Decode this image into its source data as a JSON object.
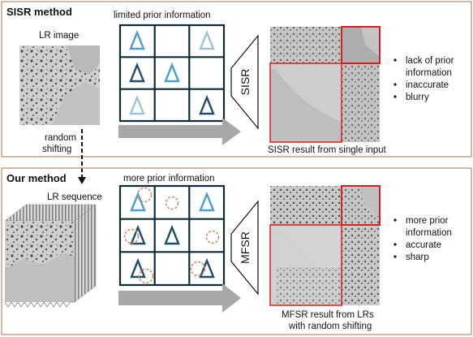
{
  "sisr": {
    "title": "SISR method",
    "lr_label": "LR image",
    "prior_label": "limited prior information",
    "block_label": "SISR",
    "result_label": "SISR result from single input",
    "bullets": [
      "lack of prior",
      "information",
      "inaccurate",
      "blurry"
    ]
  },
  "shift": {
    "line1": "random",
    "line2": "shifting"
  },
  "ours": {
    "title": "Our method",
    "seq_label": "LR sequence",
    "prior_label": "more prior information",
    "block_label": "MFSR",
    "result_line1": "MFSR result from LRs",
    "result_line2": "with random shifting",
    "bullets": [
      "more prior",
      "information",
      "accurate",
      "sharp"
    ]
  },
  "colors": {
    "panel_border": "#b8896a",
    "grid_dark": "#0d2a38",
    "tri_light": "#9ec3d8",
    "tri_mid": "#4a9fd0",
    "tri_dark": "#1f4e66",
    "circle_dash": "#d7895a",
    "arrow": "#a8a8a8",
    "zoom_box": "#d42020"
  }
}
